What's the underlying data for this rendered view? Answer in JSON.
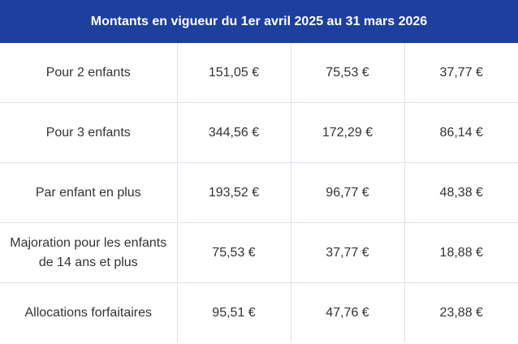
{
  "header": {
    "title": "Montants en vigueur du 1er avril 2025 au 31 mars 2026"
  },
  "table": {
    "rows": [
      [
        "Pour 2 enfants",
        "151,05 €",
        "75,53 €",
        "37,77 €"
      ],
      [
        "Pour 3 enfants",
        "344,56 €",
        "172,29 €",
        "86,14 €"
      ],
      [
        "Par enfant en plus",
        "193,52 €",
        "96,77 €",
        "48,38 €"
      ],
      [
        "Majoration pour les enfants de 14 ans et plus",
        "75,53 €",
        "37,77 €",
        "18,88 €"
      ],
      [
        "Allocations forfaitaires",
        "95,51 €",
        "47,76 €",
        "23,88 €"
      ]
    ]
  }
}
